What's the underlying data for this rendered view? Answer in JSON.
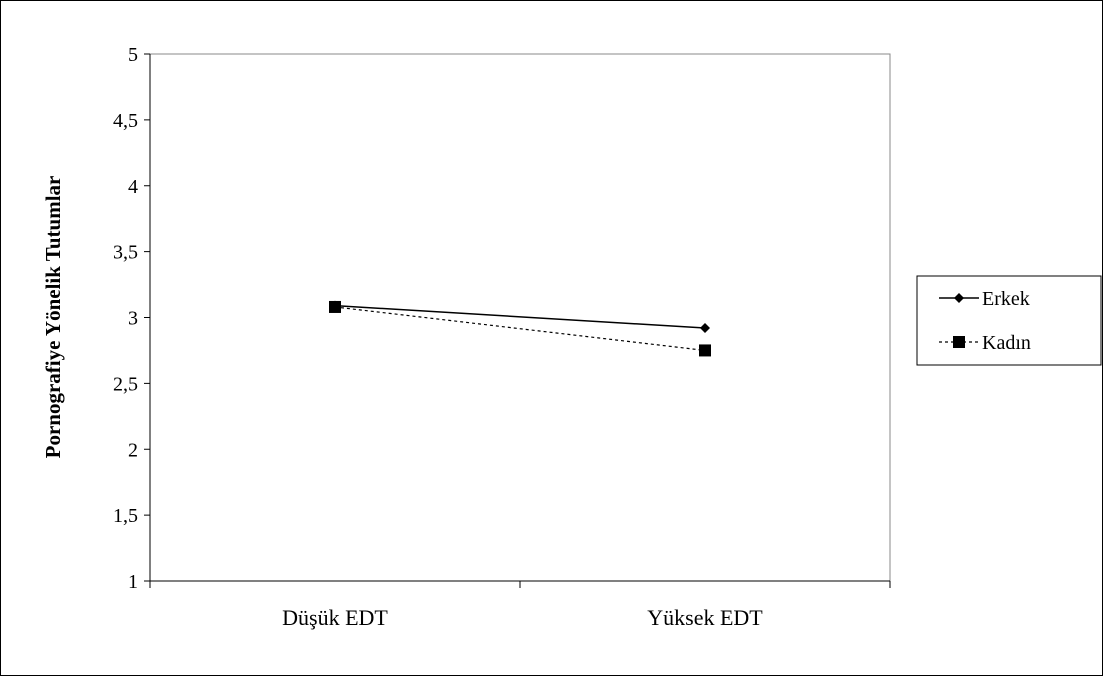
{
  "chart_data": {
    "type": "line",
    "title": "",
    "xlabel": "",
    "ylabel": "Pornografiye  Yönelik  Tutumlar",
    "categories": [
      "Düşük  EDT",
      "Yüksek  EDT"
    ],
    "ylim": [
      1,
      5
    ],
    "yticks": [
      1,
      1.5,
      2,
      2.5,
      3,
      3.5,
      4,
      4.5,
      5
    ],
    "ytick_labels": [
      "1",
      "1,5",
      "2",
      "2,5",
      "3",
      "3,5",
      "4",
      "4,5",
      "5"
    ],
    "grid": false,
    "legend_position": "right",
    "series": [
      {
        "name": "Erkek",
        "values": [
          3.09,
          2.92
        ],
        "color": "#000000",
        "line_style": "solid",
        "marker": "diamond"
      },
      {
        "name": "Kadın",
        "values": [
          3.08,
          2.75
        ],
        "color": "#000000",
        "line_style": "dashed",
        "marker": "square"
      }
    ]
  }
}
